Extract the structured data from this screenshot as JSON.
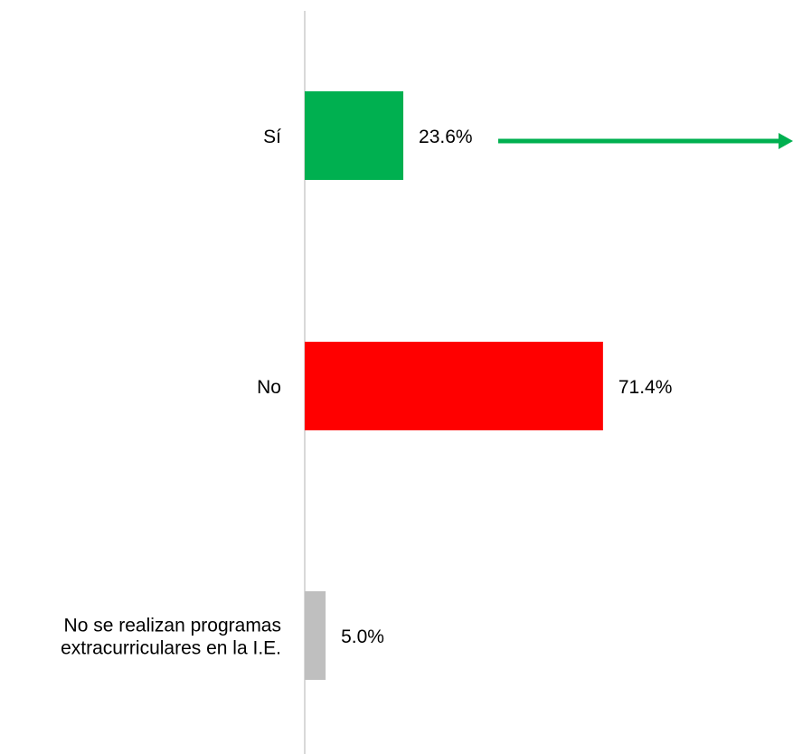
{
  "chart_data": {
    "type": "bar",
    "orientation": "horizontal",
    "categories": [
      [
        "Sí"
      ],
      [
        "No"
      ],
      [
        "No se realizan programas",
        "extracurriculares en la I.E."
      ]
    ],
    "values": [
      23.6,
      71.4,
      5.0
    ],
    "value_labels": [
      "23.6%",
      "71.4%",
      "5.0%"
    ],
    "colors": [
      "#00b050",
      "#ff0000",
      "#bfbfbf"
    ],
    "xlim": [
      0,
      100
    ],
    "title": "",
    "xlabel": "",
    "ylabel": "",
    "grid": false,
    "legend": "none",
    "annotation": {
      "type": "arrow",
      "target": "Sí",
      "direction": "right",
      "color": "#00b050"
    }
  }
}
